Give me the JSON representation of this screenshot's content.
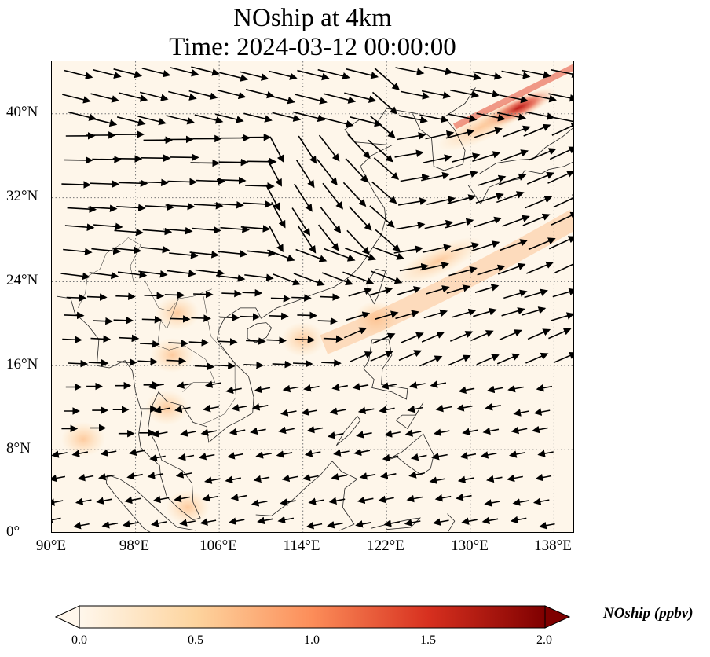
{
  "title": {
    "line1": "NOship at 4km",
    "line2": "Time: 2024-03-12 00:00:00"
  },
  "map": {
    "projection": "PlateCarree",
    "lon_range": [
      90,
      140
    ],
    "lat_range": [
      0,
      45
    ],
    "gridlines": "dotted",
    "lat_ticks": [
      "0°",
      "8°N",
      "16°N",
      "24°N",
      "32°N",
      "40°N"
    ],
    "lon_ticks": [
      "90°E",
      "98°E",
      "106°E",
      "114°E",
      "122°E",
      "130°E",
      "138°E"
    ],
    "field": "NOship",
    "field_hotspots": [
      {
        "lon": 134.5,
        "lat": 40.5,
        "value": 1.8
      },
      {
        "lon": 131.0,
        "lat": 38.7,
        "value": 0.9
      },
      {
        "lon": 127.0,
        "lat": 26.0,
        "value": 0.6
      },
      {
        "lon": 121.0,
        "lat": 20.5,
        "value": 0.45
      },
      {
        "lon": 114.0,
        "lat": 18.5,
        "value": 0.35
      },
      {
        "lon": 102.0,
        "lat": 21.0,
        "value": 0.4
      },
      {
        "lon": 101.5,
        "lat": 17.0,
        "value": 0.3
      },
      {
        "lon": 101.0,
        "lat": 12.0,
        "value": 0.35
      },
      {
        "lon": 103.0,
        "lat": 2.5,
        "value": 0.4
      },
      {
        "lon": 93.0,
        "lat": 9.0,
        "value": 0.3
      }
    ],
    "wind_vectors": "quiver arrows (black)"
  },
  "colorbar": {
    "label": "NOship (ppbv)",
    "ticks": [
      "0.0",
      "0.5",
      "1.0",
      "1.5",
      "2.0"
    ],
    "vmin": 0.0,
    "vmax": 2.0,
    "extend": "both",
    "cmap": "OrRd",
    "colors": [
      "#fff7ec",
      "#fdd49e",
      "#fc8d59",
      "#d7301f",
      "#7f0000"
    ]
  }
}
